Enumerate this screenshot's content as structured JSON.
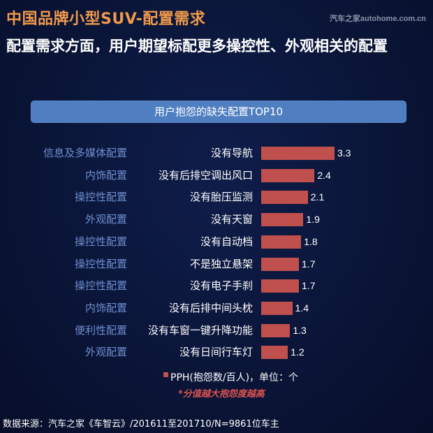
{
  "header": {
    "title": "中国品牌小型SUV-配置需求",
    "watermark": "汽车之家autohome.com.cn",
    "subtitle": "配置需求方面，用户期望标配更多操控性、外观相关的配置"
  },
  "chart_header": "用户抱怨的缺失配置TOP10",
  "legend": {
    "label": "PPH(抱怨数/百人)，单位：个",
    "color": "#c0504d"
  },
  "note": "*分值越大抱怨度越高",
  "source": "数据来源：汽车之家《车智云》/201611至201710/N=9861位车主",
  "colors": {
    "title": "#f0994a",
    "bar": "#c0504d",
    "header_bg": "#4f7fc0",
    "category": "#6f8fd0"
  },
  "chart_data": {
    "type": "bar",
    "orientation": "horizontal",
    "title": "用户抱怨的缺失配置TOP10",
    "xlabel": "PPH(抱怨数/百人)，单位：个",
    "ylabel": "",
    "grid": false,
    "legend_position": "bottom",
    "categories": [
      "没有导航",
      "没有后排空调出风口",
      "没有胎压监测",
      "没有天窗",
      "没有自动档",
      "不是独立悬架",
      "没有电子手刹",
      "没有后排中间头枕",
      "没有车窗一键升降功能",
      "没有日间行车灯"
    ],
    "groups": [
      "信息及多媒体配置",
      "内饰配置",
      "操控性配置",
      "外观配置",
      "操控性配置",
      "操控性配置",
      "操控性配置",
      "内饰配置",
      "便利性配置",
      "外观配置"
    ],
    "series": [
      {
        "name": "PPH(抱怨数/百人)",
        "values": [
          3.3,
          2.4,
          2.1,
          1.9,
          1.8,
          1.7,
          1.7,
          1.4,
          1.3,
          1.2
        ]
      }
    ],
    "value_labels": [
      "3.3",
      "2.4",
      "2.1",
      "1.9",
      "1.8",
      "1.7",
      "1.7",
      "1.4",
      "1.3",
      "1.2"
    ]
  }
}
